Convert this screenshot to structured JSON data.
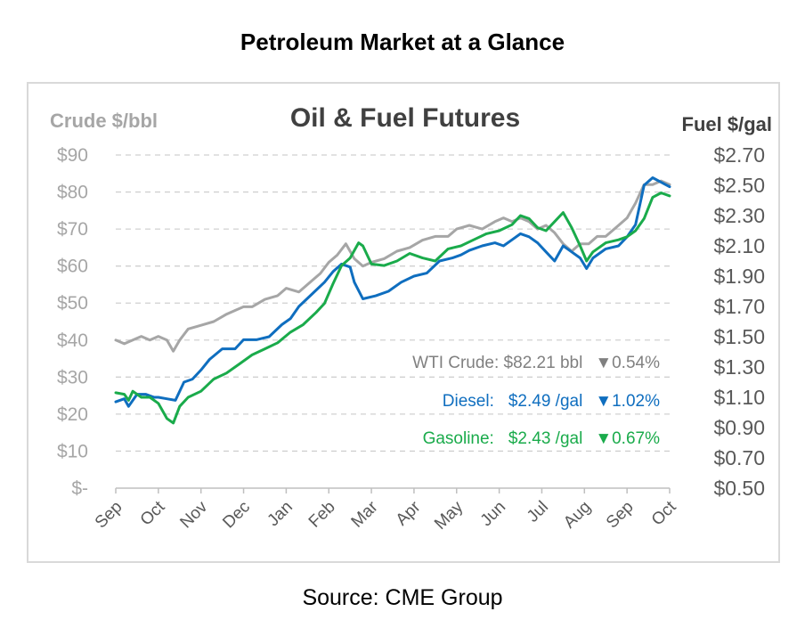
{
  "header": {
    "title": "Petroleum Market at a Glance"
  },
  "footer": {
    "source": "Source: CME Group"
  },
  "chart_data": {
    "type": "line",
    "title": "Oil & Fuel Futures",
    "y_left": {
      "label": "Crude $/bbl",
      "range": [
        0,
        90
      ],
      "ticks": [
        0,
        10,
        20,
        30,
        40,
        50,
        60,
        70,
        80,
        90
      ],
      "tick_labels": [
        "$-",
        "$10",
        "$20",
        "$30",
        "$40",
        "$50",
        "$60",
        "$70",
        "$80",
        "$90"
      ]
    },
    "y_right": {
      "label": "Fuel $/gal",
      "range": [
        0.5,
        2.7
      ],
      "ticks": [
        0.5,
        0.7,
        0.9,
        1.1,
        1.3,
        1.5,
        1.7,
        1.9,
        2.1,
        2.3,
        2.5,
        2.7
      ],
      "tick_labels": [
        "$0.50",
        "$0.70",
        "$0.90",
        "$1.10",
        "$1.30",
        "$1.50",
        "$1.70",
        "$1.90",
        "$2.10",
        "$2.30",
        "$2.50",
        "$2.70"
      ]
    },
    "x": {
      "range": [
        0,
        13
      ],
      "ticks": [
        0,
        1,
        2,
        3,
        4,
        5,
        6,
        7,
        8,
        9,
        10,
        11,
        12,
        13
      ],
      "tick_labels": [
        "Sep",
        "Oct",
        "Nov",
        "Dec",
        "Jan",
        "Feb",
        "Mar",
        "Apr",
        "May",
        "Jun",
        "Jul",
        "Aug",
        "Sep",
        "Oct"
      ]
    },
    "grid": true,
    "colors": {
      "wti": "#a6a6a6",
      "diesel": "#0f6ebf",
      "gasoline": "#1aab4b",
      "axis_text": "#a6a6a6",
      "right_axis_text": "#595959",
      "title_text": "#404040"
    },
    "series": [
      {
        "name": "WTI Crude",
        "axis": "left",
        "x": [
          0,
          0.2,
          0.4,
          0.6,
          0.8,
          1.0,
          1.2,
          1.35,
          1.5,
          1.7,
          2.0,
          2.3,
          2.6,
          2.8,
          3.0,
          3.2,
          3.5,
          3.8,
          4.0,
          4.3,
          4.6,
          4.8,
          5.0,
          5.2,
          5.4,
          5.6,
          5.8,
          6.0,
          6.3,
          6.6,
          6.9,
          7.2,
          7.5,
          7.8,
          8.0,
          8.3,
          8.6,
          8.9,
          9.1,
          9.3,
          9.5,
          9.7,
          9.9,
          10.1,
          10.3,
          10.5,
          10.7,
          10.9,
          11.1,
          11.3,
          11.5,
          11.8,
          12.0,
          12.2,
          12.4,
          12.6,
          12.8,
          13.0
        ],
        "y": [
          40,
          39,
          40,
          41,
          40,
          41,
          40,
          37,
          40,
          43,
          44,
          45,
          47,
          48,
          49,
          49,
          51,
          52,
          54,
          53,
          56,
          58,
          61,
          63,
          66,
          62,
          60,
          61,
          62,
          64,
          65,
          67,
          68,
          68,
          70,
          71,
          70,
          72,
          73,
          72,
          73,
          72,
          70,
          71,
          69,
          66,
          64,
          66,
          66,
          68,
          68,
          71,
          73,
          77,
          82,
          82,
          83,
          82
        ]
      },
      {
        "name": "Diesel",
        "axis": "right",
        "unit": "$/gal",
        "x": [
          0,
          0.2,
          0.3,
          0.5,
          0.7,
          0.9,
          1.0,
          1.2,
          1.4,
          1.6,
          1.8,
          2.0,
          2.2,
          2.5,
          2.8,
          3.0,
          3.3,
          3.6,
          3.9,
          4.1,
          4.3,
          4.6,
          4.9,
          5.1,
          5.3,
          5.5,
          5.6,
          5.8,
          6.1,
          6.4,
          6.7,
          7.0,
          7.3,
          7.6,
          7.9,
          8.1,
          8.3,
          8.6,
          8.9,
          9.1,
          9.3,
          9.5,
          9.7,
          9.9,
          10.1,
          10.3,
          10.5,
          10.7,
          10.9,
          11.05,
          11.2,
          11.5,
          11.8,
          12.0,
          12.2,
          12.4,
          12.6,
          12.8,
          13.0
        ],
        "y": [
          1.07,
          1.09,
          1.04,
          1.12,
          1.12,
          1.1,
          1.1,
          1.09,
          1.08,
          1.2,
          1.22,
          1.28,
          1.35,
          1.42,
          1.42,
          1.48,
          1.48,
          1.5,
          1.58,
          1.62,
          1.7,
          1.78,
          1.86,
          1.93,
          1.98,
          1.96,
          1.86,
          1.75,
          1.77,
          1.8,
          1.86,
          1.9,
          1.92,
          2.0,
          2.02,
          2.04,
          2.07,
          2.1,
          2.12,
          2.1,
          2.14,
          2.18,
          2.16,
          2.12,
          2.06,
          2.0,
          2.1,
          2.06,
          2.02,
          1.95,
          2.02,
          2.08,
          2.1,
          2.16,
          2.24,
          2.5,
          2.55,
          2.52,
          2.49
        ]
      },
      {
        "name": "Gasoline",
        "axis": "right",
        "unit": "$/gal",
        "x": [
          0,
          0.2,
          0.3,
          0.4,
          0.6,
          0.8,
          1.0,
          1.2,
          1.35,
          1.5,
          1.7,
          2.0,
          2.3,
          2.6,
          2.9,
          3.2,
          3.5,
          3.8,
          4.1,
          4.4,
          4.7,
          4.9,
          5.1,
          5.3,
          5.5,
          5.7,
          5.8,
          6.0,
          6.3,
          6.6,
          6.9,
          7.2,
          7.5,
          7.8,
          8.1,
          8.4,
          8.7,
          9.0,
          9.3,
          9.5,
          9.7,
          9.9,
          10.1,
          10.3,
          10.5,
          10.7,
          10.9,
          11.05,
          11.2,
          11.5,
          11.8,
          12.0,
          12.2,
          12.4,
          12.6,
          12.8,
          13.0
        ],
        "y": [
          1.13,
          1.12,
          1.08,
          1.14,
          1.1,
          1.1,
          1.06,
          0.96,
          0.93,
          1.04,
          1.1,
          1.14,
          1.22,
          1.26,
          1.32,
          1.38,
          1.42,
          1.46,
          1.53,
          1.58,
          1.66,
          1.72,
          1.85,
          1.97,
          2.02,
          2.12,
          2.1,
          1.98,
          1.97,
          2.0,
          2.05,
          2.02,
          2.0,
          2.08,
          2.1,
          2.14,
          2.18,
          2.2,
          2.24,
          2.3,
          2.28,
          2.22,
          2.2,
          2.26,
          2.32,
          2.22,
          2.1,
          2.0,
          2.06,
          2.12,
          2.14,
          2.16,
          2.2,
          2.28,
          2.42,
          2.45,
          2.43
        ]
      }
    ],
    "legend": {
      "position": "bottom-right",
      "items": [
        {
          "key": "wti",
          "text": "WTI Crude: $82.21 bbl",
          "change": "▼0.54%"
        },
        {
          "key": "diesel",
          "label": "Diesel:",
          "price": "$2.49 /gal",
          "change": "▼1.02%"
        },
        {
          "key": "gasoline",
          "label": "Gasoline:",
          "price": "$2.43 /gal",
          "change": "▼0.67%"
        }
      ]
    }
  }
}
